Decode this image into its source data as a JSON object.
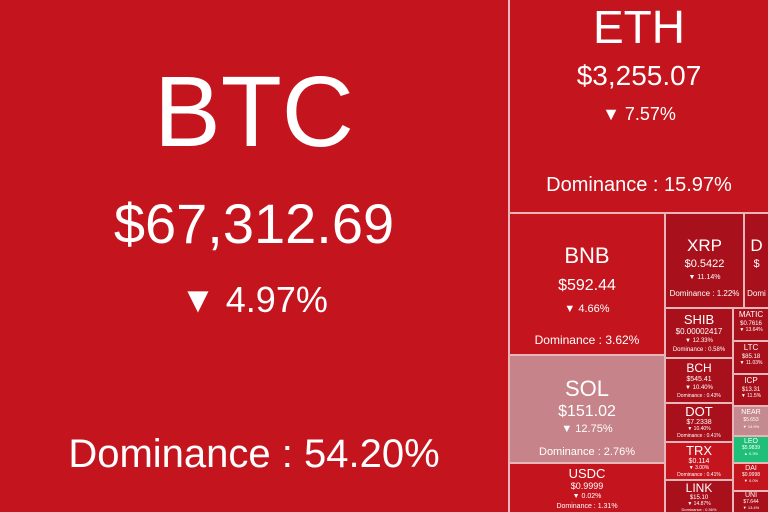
{
  "tiles": [
    {
      "symbol": "BTC",
      "price": "$67,312.69",
      "change": "▼ 4.97%",
      "dominance": "Dominance : 54.20%",
      "color": "#c4151f"
    },
    {
      "symbol": "ETH",
      "price": "$3,255.07",
      "change": "▼ 7.57%",
      "dominance": "Dominance : 15.97%",
      "color": "#c4151f"
    },
    {
      "symbol": "BNB",
      "price": "$592.44",
      "change": "▼ 4.66%",
      "dominance": "Dominance : 3.62%",
      "color": "#c4151f"
    },
    {
      "symbol": "XRP",
      "price": "$0.5422",
      "change": "▼ 11.14%",
      "dominance": "Dominance : 1.22%",
      "color": "#a8101b"
    },
    {
      "symbol": "D",
      "price": "$",
      "change": "",
      "dominance": "Domi",
      "color": "#a8101b"
    },
    {
      "symbol": "SOL",
      "price": "$151.02",
      "change": "▼ 12.75%",
      "dominance": "Dominance : 2.76%",
      "color": "#c7838a"
    },
    {
      "symbol": "USDC",
      "price": "$0.9999",
      "change": "▼ 0.02%",
      "dominance": "Dominance : 1.31%",
      "color": "#c4151f"
    },
    {
      "symbol": "SHIB",
      "price": "$0.00002417",
      "change": "▼ 12.33%",
      "dominance": "Dominance : 0.58%",
      "color": "#a8101b"
    },
    {
      "symbol": "MATIC",
      "price": "$0.7616",
      "change": "▼ 13.64%",
      "dominance": "",
      "color": "#a8101b"
    },
    {
      "symbol": "BCH",
      "price": "$545.41",
      "change": "▼ 10.40%",
      "dominance": "Dominance : 0.43%",
      "color": "#a8101b"
    },
    {
      "symbol": "DOT",
      "price": "$7.2338",
      "change": "▼ 10.40%",
      "dominance": "Dominance : 0.41%",
      "color": "#a8101b"
    },
    {
      "symbol": "TRX",
      "price": "$0.114",
      "change": "▼ 3.00%",
      "dominance": "Dominance : 0.41%",
      "color": "#c4151f"
    },
    {
      "symbol": "LINK",
      "price": "$15.10",
      "change": "▼ 14.87%",
      "dominance": "Dominance : 0.36%",
      "color": "#a8101b"
    },
    {
      "symbol": "LTC",
      "price": "$85.18",
      "change": "▼ 11.03%",
      "dominance": "",
      "color": "#a8101b"
    },
    {
      "symbol": "ICP",
      "price": "$13.31",
      "change": "▼ 11.5%",
      "dominance": "",
      "color": "#a8101b"
    },
    {
      "symbol": "NEAR",
      "price": "$5.653",
      "change": "▼ 14.9%",
      "dominance": "",
      "color": "#c48a8f"
    },
    {
      "symbol": "LEO",
      "price": "$5.9839",
      "change": "▲ 0.3%",
      "dominance": "",
      "color": "#1fbf78"
    },
    {
      "symbol": "DAI",
      "price": "$0.9998",
      "change": "▼ 0.0%",
      "dominance": "",
      "color": "#c4151f"
    },
    {
      "symbol": "UNI",
      "price": "$7.644",
      "change": "▼ 13.4%",
      "dominance": "",
      "color": "#a8101b"
    }
  ]
}
